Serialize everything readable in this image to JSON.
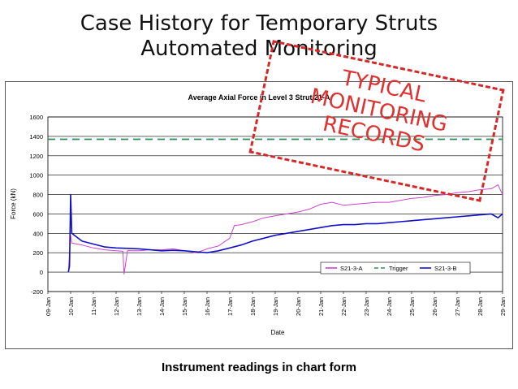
{
  "slide": {
    "title_line1": "Case History for Temporary Struts",
    "title_line2": "Automated Monitoring",
    "caption": "Instrument readings in chart form",
    "stamp": [
      "TYPICAL",
      "MONITORING",
      "RECORDS"
    ]
  },
  "colors": {
    "s21_3_a": "#cc44cc",
    "trigger": "#2e8b57",
    "s21_3_b": "#1010c8",
    "stamp": "#e03131"
  },
  "chart_data": {
    "type": "line",
    "title": "Average Axial Force in Level 3 Strut 21-A",
    "xlabel": "Date",
    "ylabel": "Force (kN)",
    "ylim": [
      -200,
      1600
    ],
    "yticks": [
      -200,
      0,
      200,
      400,
      600,
      800,
      1000,
      1200,
      1400,
      1600
    ],
    "xlim": [
      0,
      20
    ],
    "xtick_labels": [
      "09-Jan",
      "10-Jan",
      "11-Jan",
      "12-Jan",
      "13-Jan",
      "14-Jan",
      "15-Jan",
      "16-Jan",
      "17-Jan",
      "18-Jan",
      "19-Jan",
      "20-Jan",
      "21-Jan",
      "22-Jan",
      "23-Jan",
      "24-Jan",
      "25-Jan",
      "26-Jan",
      "27-Jan",
      "28-Jan",
      "29-Jan"
    ],
    "grid": true,
    "legend_position": "bottom-right",
    "series": [
      {
        "name": "S21-3-A",
        "style": "solid",
        "x": [
          0.9,
          1.0,
          1.05,
          1.5,
          2.0,
          2.5,
          3.0,
          3.3,
          3.35,
          3.5,
          4.0,
          4.5,
          5.0,
          5.5,
          6.0,
          6.5,
          6.9,
          7.0,
          7.5,
          8.0,
          8.2,
          8.5,
          9.0,
          9.5,
          10.0,
          10.5,
          11.0,
          11.5,
          12.0,
          12.5,
          13.0,
          13.5,
          14.0,
          14.5,
          15.0,
          15.5,
          16.0,
          16.5,
          17.0,
          17.5,
          18.0,
          18.5,
          19.0,
          19.5,
          19.8,
          20.0
        ],
        "values": [
          0,
          380,
          300,
          280,
          250,
          230,
          220,
          215,
          -20,
          220,
          220,
          230,
          230,
          240,
          220,
          200,
          230,
          240,
          270,
          350,
          480,
          490,
          520,
          560,
          580,
          600,
          620,
          650,
          700,
          720,
          690,
          700,
          710,
          720,
          720,
          740,
          760,
          770,
          790,
          800,
          820,
          830,
          850,
          860,
          900,
          800
        ]
      },
      {
        "name": "Trigger",
        "style": "dashed",
        "x": [
          0,
          20
        ],
        "values": [
          1370,
          1370
        ]
      },
      {
        "name": "S21-3-B",
        "style": "solid",
        "x": [
          0.9,
          0.95,
          1.0,
          1.05,
          1.5,
          2.0,
          2.5,
          3.0,
          3.5,
          4.0,
          4.5,
          5.0,
          5.5,
          6.0,
          6.5,
          7.0,
          7.5,
          8.0,
          8.5,
          9.0,
          9.5,
          10.0,
          10.5,
          11.0,
          11.5,
          12.0,
          12.5,
          13.0,
          13.5,
          14.0,
          14.5,
          15.0,
          15.5,
          16.0,
          16.5,
          17.0,
          17.5,
          18.0,
          18.5,
          19.0,
          19.5,
          19.8,
          20.0
        ],
        "values": [
          0,
          60,
          800,
          400,
          320,
          290,
          260,
          250,
          245,
          240,
          230,
          220,
          225,
          220,
          210,
          200,
          220,
          250,
          280,
          320,
          350,
          380,
          400,
          420,
          440,
          460,
          480,
          490,
          490,
          500,
          500,
          510,
          520,
          530,
          540,
          550,
          560,
          570,
          580,
          590,
          600,
          560,
          600
        ]
      }
    ]
  }
}
